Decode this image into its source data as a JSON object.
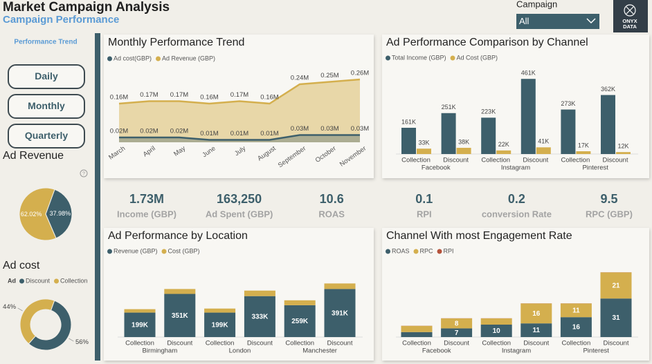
{
  "header": {
    "title": "Market Campaign Analysis",
    "subtitle": "Campaign Performance"
  },
  "filter": {
    "label": "Campaign",
    "value": "All"
  },
  "logo": {
    "line1": "ONYX",
    "line2": "DATA"
  },
  "nav": {
    "title": "Performance Trend",
    "buttons": [
      "Daily",
      "Monthly",
      "Quarterly"
    ]
  },
  "kpis": [
    {
      "value": "1.73M",
      "label": "Income (GBP)"
    },
    {
      "value": "163,250",
      "label": "Ad Spent (GBP)"
    },
    {
      "value": "10.6",
      "label": "ROAS"
    },
    {
      "value": "0.1",
      "label": "RPI"
    },
    {
      "value": "0.2",
      "label": "conversion Rate"
    },
    {
      "value": "9.5",
      "label": "RPC (GBP)"
    }
  ],
  "chart_data": [
    {
      "type": "pie",
      "title": "Ad Revenue",
      "values": [
        37.98,
        62.02
      ],
      "value_labels": [
        "37.98%",
        "62.02%"
      ],
      "colors": [
        "#3d5f6b",
        "#d4af4e"
      ]
    },
    {
      "type": "donut",
      "title": "Ad cost",
      "legend_title": "Ad",
      "categories": [
        "Discount",
        "Collection"
      ],
      "values": [
        56,
        44
      ],
      "value_labels": [
        "56%",
        "44%"
      ],
      "colors": [
        "#3d5f6b",
        "#d4af4e"
      ]
    },
    {
      "type": "area",
      "title": "Monthly Performance Trend",
      "categories": [
        "March",
        "April",
        "May",
        "June",
        "July",
        "August",
        "September",
        "October",
        "November"
      ],
      "series": [
        {
          "name": "Ad cost(GBP)",
          "color": "#3d5f6b",
          "values": [
            20000,
            20000,
            20000,
            10000,
            10000,
            10000,
            30000,
            30000,
            30000
          ],
          "value_labels": [
            "0.02M",
            "0.02M",
            "0.02M",
            "0.01M",
            "0.01M",
            "0.01M",
            "0.03M",
            "0.03M",
            "0.03M"
          ]
        },
        {
          "name": "Ad Revenue (GBP)",
          "color": "#d4af4e",
          "values": [
            160000,
            170000,
            170000,
            160000,
            170000,
            160000,
            240000,
            250000,
            260000
          ],
          "value_labels": [
            "0.16M",
            "0.17M",
            "0.17M",
            "0.16M",
            "0.17M",
            "0.16M",
            "0.24M",
            "0.25M",
            "0.26M"
          ]
        }
      ],
      "ylim": [
        0,
        300000
      ]
    },
    {
      "type": "bar",
      "title": "Ad Performance Comparison by Channel",
      "categories": [
        "Collection",
        "Discount",
        "Collection",
        "Discount",
        "Collection",
        "Discount"
      ],
      "groups": [
        "Facebook",
        "Instagram",
        "Pinterest"
      ],
      "series": [
        {
          "name": "Total Income (GBP)",
          "color": "#3d5f6b",
          "values": [
            161000,
            251000,
            223000,
            461000,
            273000,
            362000
          ],
          "value_labels": [
            "161K",
            "251K",
            "223K",
            "461K",
            "273K",
            "362K"
          ]
        },
        {
          "name": "Ad Cost (GBP)",
          "color": "#d4af4e",
          "values": [
            33000,
            38000,
            22000,
            41000,
            17000,
            12000
          ],
          "value_labels": [
            "33K",
            "38K",
            "22K",
            "41K",
            "17K",
            "12K"
          ]
        }
      ],
      "ylim": [
        0,
        500000
      ]
    },
    {
      "type": "stacked_bar",
      "title": "Ad Performance by Location",
      "categories": [
        "Collection",
        "Discount",
        "Collection",
        "Discount",
        "Collection",
        "Discount"
      ],
      "groups": [
        "Birmingham",
        "London",
        "Manchester"
      ],
      "series": [
        {
          "name": "Revenue (GBP)",
          "color": "#3d5f6b",
          "values": [
            199000,
            351000,
            199000,
            333000,
            259000,
            391000
          ],
          "value_labels": [
            "199K",
            "351K",
            "199K",
            "333K",
            "259K",
            "391K"
          ]
        },
        {
          "name": "Cost (GBP)",
          "color": "#d4af4e",
          "values": [
            28000,
            40000,
            33000,
            45000,
            40000,
            45000
          ]
        }
      ],
      "ylim": [
        0,
        500000
      ]
    },
    {
      "type": "stacked_bar",
      "title": "Channel With most Engagement Rate",
      "categories": [
        "Collection",
        "Discount",
        "Collection",
        "Discount",
        "Collection",
        "Discount"
      ],
      "groups": [
        "Facebook",
        "Instagram",
        "Pinterest"
      ],
      "series": [
        {
          "name": "ROAS",
          "color": "#3d5f6b",
          "values": [
            4,
            7,
            10,
            11,
            16,
            31
          ]
        },
        {
          "name": "RPC",
          "color": "#d4af4e",
          "values": [
            5,
            8,
            5,
            16,
            11,
            21
          ]
        },
        {
          "name": "RPI",
          "color": "#b5523b",
          "values": [
            0.1,
            0.1,
            0.1,
            0.1,
            0.1,
            0.1
          ]
        }
      ],
      "ylim": [
        0,
        60
      ]
    }
  ]
}
